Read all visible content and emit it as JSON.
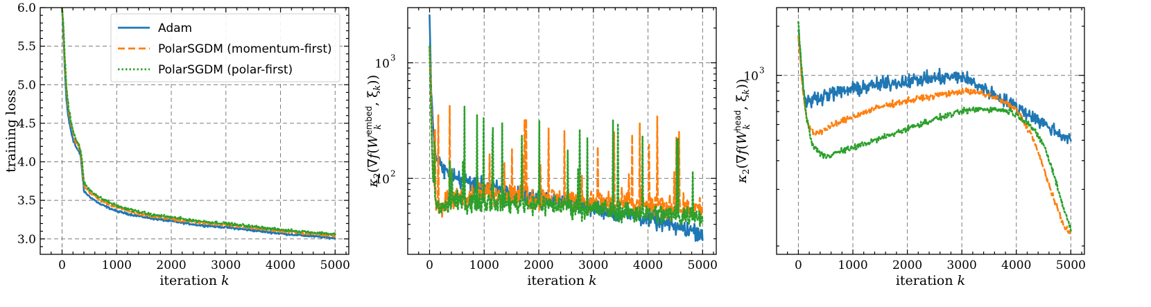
{
  "chart_data": [
    {
      "type": "line",
      "xlabel_main": "iteration",
      "xlabel_var": "k",
      "ylabel": "training loss",
      "xlim": [
        -400,
        5250
      ],
      "ylim": [
        2.8,
        6.0
      ],
      "xticks": [
        0,
        1000,
        2000,
        3000,
        4000,
        5000
      ],
      "yticks": [
        3.0,
        3.5,
        4.0,
        4.5,
        5.0,
        5.5,
        6.0
      ],
      "ytick_labels": [
        "3.0",
        "3.5",
        "4.0",
        "4.5",
        "5.0",
        "5.5",
        "6.0"
      ],
      "grid": true,
      "legend": "top-right",
      "series": [
        {
          "name": "Adam",
          "color": "#1f77b4",
          "style": "solid",
          "x": [
            0,
            20,
            50,
            80,
            120,
            180,
            250,
            340,
            380,
            400,
            500,
            700,
            1000,
            1300,
            1600,
            2000,
            2500,
            3000,
            3500,
            4000,
            4500,
            5000
          ],
          "y": [
            6.0,
            5.7,
            5.2,
            4.8,
            4.55,
            4.35,
            4.2,
            4.08,
            3.78,
            3.62,
            3.55,
            3.45,
            3.36,
            3.31,
            3.27,
            3.23,
            3.18,
            3.15,
            3.11,
            3.07,
            3.04,
            3.01
          ],
          "noise": 0.02
        },
        {
          "name": "PolarSGDM (momentum-first)",
          "color": "#ff7f0e",
          "style": "dashed",
          "x": [
            0,
            20,
            50,
            80,
            120,
            180,
            250,
            340,
            380,
            400,
            500,
            700,
            1000,
            1300,
            1600,
            2000,
            2500,
            3000,
            3500,
            4000,
            4500,
            5000
          ],
          "y": [
            6.0,
            5.78,
            5.3,
            4.92,
            4.66,
            4.44,
            4.27,
            4.13,
            3.84,
            3.69,
            3.61,
            3.5,
            3.41,
            3.35,
            3.3,
            3.26,
            3.21,
            3.18,
            3.14,
            3.1,
            3.07,
            3.04
          ],
          "noise": 0.025
        },
        {
          "name": "PolarSGDM (polar-first)",
          "color": "#2ca02c",
          "style": "dotted",
          "x": [
            0,
            20,
            50,
            80,
            120,
            180,
            250,
            340,
            380,
            400,
            500,
            700,
            1000,
            1300,
            1600,
            2000,
            2500,
            3000,
            3500,
            4000,
            4500,
            5000
          ],
          "y": [
            6.0,
            5.82,
            5.35,
            4.96,
            4.7,
            4.48,
            4.3,
            4.16,
            3.88,
            3.73,
            3.64,
            3.53,
            3.43,
            3.37,
            3.32,
            3.28,
            3.23,
            3.2,
            3.16,
            3.12,
            3.09,
            3.06
          ],
          "noise": 0.028
        }
      ]
    },
    {
      "type": "line",
      "xlabel_main": "iteration",
      "xlabel_var": "k",
      "ylabel": "κ2(∇f(W_k^embed, ξ_k))",
      "ylabel_parts": {
        "kappa": "κ",
        "sub": "2",
        "open": "(∇",
        "f": "f",
        "paren": "(",
        "W": "W",
        "sup": "embed",
        "k1": "k",
        "comma": ", ξ",
        "k2": "k",
        "close": "))"
      },
      "scale": "log",
      "xlim": [
        -400,
        5250
      ],
      "ylim": [
        22,
        3000
      ],
      "xticks": [
        0,
        1000,
        2000,
        3000,
        4000,
        5000
      ],
      "ytick_major": [
        100,
        1000
      ],
      "ytick_labels": [
        {
          "base": "10",
          "exp": "2"
        },
        {
          "base": "10",
          "exp": "3"
        }
      ],
      "grid": true,
      "series": [
        {
          "name": "Adam",
          "color": "#1f77b4",
          "style": "solid",
          "x": [
            0,
            20,
            60,
            100,
            150,
            200,
            300,
            500,
            1000,
            1500,
            2000,
            2500,
            3000,
            3500,
            4000,
            4500,
            5000
          ],
          "y": [
            2300,
            900,
            300,
            170,
            140,
            130,
            115,
            100,
            85,
            75,
            68,
            62,
            55,
            50,
            45,
            38,
            34
          ],
          "noise": 0.16,
          "spikes": 0
        },
        {
          "name": "PolarSGDM (momentum-first)",
          "color": "#ff7f0e",
          "style": "dashed",
          "x": [
            0,
            20,
            60,
            100,
            150,
            200,
            300,
            500,
            1000,
            1500,
            2000,
            2500,
            3000,
            3500,
            4000,
            4500,
            5000
          ],
          "y": [
            1500,
            600,
            130,
            70,
            60,
            58,
            62,
            68,
            72,
            70,
            68,
            66,
            63,
            60,
            58,
            56,
            55
          ],
          "noise": 0.22,
          "spikes": 0.05
        },
        {
          "name": "PolarSGDM (polar-first)",
          "color": "#2ca02c",
          "style": "dotted",
          "x": [
            0,
            20,
            60,
            100,
            150,
            200,
            300,
            500,
            1000,
            1500,
            2000,
            2500,
            3000,
            3500,
            4000,
            4500,
            5000
          ],
          "y": [
            1200,
            500,
            110,
            65,
            58,
            56,
            58,
            62,
            64,
            62,
            60,
            58,
            55,
            52,
            50,
            48,
            47
          ],
          "noise": 0.2,
          "spikes": 0.04
        }
      ]
    },
    {
      "type": "line",
      "xlabel_main": "iteration",
      "xlabel_var": "k",
      "ylabel": "κ2(∇f(W_k^head, ξ_k))",
      "ylabel_parts": {
        "kappa": "κ",
        "sub": "2",
        "open": "(∇",
        "f": "f",
        "paren": "(",
        "W": "W",
        "sup": "head",
        "k1": "k",
        "comma": ", ξ",
        "k2": "k",
        "close": "))"
      },
      "scale": "log",
      "xlim": [
        -400,
        5250
      ],
      "ylim": [
        80,
        2600
      ],
      "xticks": [
        0,
        1000,
        2000,
        3000,
        4000,
        5000
      ],
      "ytick_major": [
        1000
      ],
      "ytick_labels": [
        {
          "base": "10",
          "exp": "3"
        }
      ],
      "grid": true,
      "series": [
        {
          "name": "Adam",
          "color": "#1f77b4",
          "style": "solid",
          "x": [
            0,
            30,
            80,
            150,
            200,
            300,
            500,
            1000,
            1500,
            2000,
            2500,
            3000,
            3300,
            3600,
            4000,
            4300,
            4600,
            5000
          ],
          "y": [
            2000,
            1400,
            900,
            650,
            700,
            720,
            760,
            820,
            880,
            920,
            960,
            980,
            870,
            760,
            640,
            560,
            480,
            400
          ],
          "noise": 0.09,
          "spikes": 0
        },
        {
          "name": "PolarSGDM (momentum-first)",
          "color": "#ff7f0e",
          "style": "dashed",
          "x": [
            0,
            30,
            80,
            150,
            200,
            300,
            500,
            1000,
            1500,
            2000,
            2500,
            3000,
            3300,
            3600,
            4000,
            4300,
            4500,
            4700,
            4850,
            5000
          ],
          "y": [
            1800,
            1300,
            800,
            550,
            480,
            440,
            470,
            560,
            640,
            700,
            750,
            800,
            780,
            740,
            620,
            420,
            270,
            170,
            125,
            105
          ],
          "noise": 0.04,
          "spikes": 0
        },
        {
          "name": "PolarSGDM (polar-first)",
          "color": "#2ca02c",
          "style": "dotted",
          "x": [
            0,
            30,
            80,
            150,
            250,
            400,
            500,
            1000,
            1500,
            2000,
            2500,
            3000,
            3300,
            3600,
            3900,
            4200,
            4500,
            4700,
            4850,
            5000
          ],
          "y": [
            2100,
            1500,
            900,
            550,
            380,
            330,
            320,
            360,
            410,
            470,
            540,
            600,
            620,
            620,
            600,
            520,
            380,
            240,
            160,
            115
          ],
          "noise": 0.04,
          "spikes": 0
        }
      ]
    }
  ]
}
